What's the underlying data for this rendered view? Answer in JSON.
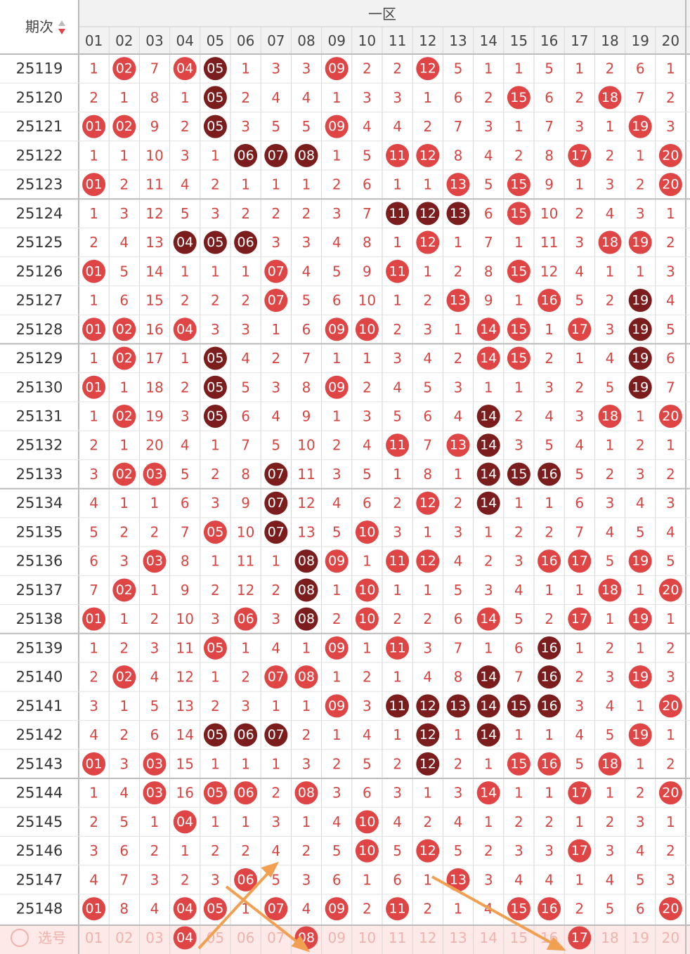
{
  "header": {
    "period": "期次",
    "zone": "一区",
    "columns": [
      "01",
      "02",
      "03",
      "04",
      "05",
      "06",
      "07",
      "08",
      "09",
      "10",
      "11",
      "12",
      "13",
      "14",
      "15",
      "16",
      "17",
      "18",
      "19",
      "20"
    ]
  },
  "rows": [
    {
      "period": "25119",
      "cells": [
        "1",
        "02",
        "7",
        "04",
        "05",
        "1",
        "3",
        "3",
        "09",
        "2",
        "2",
        "12",
        "5",
        "1",
        "1",
        "5",
        "1",
        "2",
        "6",
        "1"
      ],
      "marks": "-r-rd---r--r--------"
    },
    {
      "period": "25120",
      "cells": [
        "2",
        "1",
        "8",
        "1",
        "05",
        "2",
        "4",
        "4",
        "1",
        "3",
        "3",
        "1",
        "6",
        "2",
        "15",
        "6",
        "2",
        "18",
        "7",
        "2"
      ],
      "marks": "----d---------r--r--"
    },
    {
      "period": "25121",
      "cells": [
        "01",
        "02",
        "9",
        "2",
        "05",
        "3",
        "5",
        "5",
        "09",
        "4",
        "4",
        "2",
        "7",
        "3",
        "1",
        "7",
        "3",
        "1",
        "19",
        "3"
      ],
      "marks": "rr--d---r---------r-"
    },
    {
      "period": "25122",
      "cells": [
        "1",
        "1",
        "10",
        "3",
        "1",
        "06",
        "07",
        "08",
        "1",
        "5",
        "11",
        "12",
        "8",
        "4",
        "2",
        "8",
        "17",
        "2",
        "1",
        "20"
      ],
      "marks": "-----ddd--rr----r--r"
    },
    {
      "period": "25123",
      "cells": [
        "01",
        "2",
        "11",
        "4",
        "2",
        "1",
        "1",
        "1",
        "2",
        "6",
        "1",
        "1",
        "13",
        "5",
        "15",
        "9",
        "1",
        "3",
        "2",
        "20"
      ],
      "marks": "r-----------r-r----r"
    },
    {
      "period": "25124",
      "cells": [
        "1",
        "3",
        "12",
        "5",
        "3",
        "2",
        "2",
        "2",
        "3",
        "7",
        "11",
        "12",
        "13",
        "6",
        "15",
        "10",
        "2",
        "4",
        "3",
        "1"
      ],
      "marks": "----------ddd-r-----"
    },
    {
      "period": "25125",
      "cells": [
        "2",
        "4",
        "13",
        "04",
        "05",
        "06",
        "3",
        "3",
        "4",
        "8",
        "1",
        "12",
        "1",
        "7",
        "1",
        "11",
        "3",
        "18",
        "19",
        "2"
      ],
      "marks": "---ddd-----r-----rr-"
    },
    {
      "period": "25126",
      "cells": [
        "01",
        "5",
        "14",
        "1",
        "1",
        "1",
        "07",
        "4",
        "5",
        "9",
        "11",
        "1",
        "2",
        "8",
        "15",
        "12",
        "4",
        "1",
        "1",
        "3"
      ],
      "marks": "r-----r---r---r-----"
    },
    {
      "period": "25127",
      "cells": [
        "1",
        "6",
        "15",
        "2",
        "2",
        "2",
        "07",
        "5",
        "6",
        "10",
        "1",
        "2",
        "13",
        "9",
        "1",
        "16",
        "5",
        "2",
        "19",
        "4"
      ],
      "marks": "------r-----r--r--d-"
    },
    {
      "period": "25128",
      "cells": [
        "01",
        "02",
        "16",
        "04",
        "3",
        "3",
        "1",
        "6",
        "09",
        "10",
        "2",
        "3",
        "1",
        "14",
        "15",
        "1",
        "17",
        "3",
        "19",
        "5"
      ],
      "marks": "rr-r----rr---rr-r-d-"
    },
    {
      "period": "25129",
      "cells": [
        "1",
        "02",
        "17",
        "1",
        "05",
        "4",
        "2",
        "7",
        "1",
        "1",
        "3",
        "4",
        "2",
        "14",
        "15",
        "2",
        "1",
        "4",
        "19",
        "6"
      ],
      "marks": "-r--d--------rr---d-"
    },
    {
      "period": "25130",
      "cells": [
        "01",
        "1",
        "18",
        "2",
        "05",
        "5",
        "3",
        "8",
        "09",
        "2",
        "4",
        "5",
        "3",
        "1",
        "1",
        "3",
        "2",
        "5",
        "19",
        "7"
      ],
      "marks": "r---d---r---------d-"
    },
    {
      "period": "25131",
      "cells": [
        "1",
        "02",
        "19",
        "3",
        "05",
        "6",
        "4",
        "9",
        "1",
        "3",
        "5",
        "6",
        "4",
        "14",
        "2",
        "4",
        "3",
        "18",
        "1",
        "20"
      ],
      "marks": "-r--d--------d---r-r"
    },
    {
      "period": "25132",
      "cells": [
        "2",
        "1",
        "20",
        "4",
        "1",
        "7",
        "5",
        "10",
        "2",
        "4",
        "11",
        "7",
        "13",
        "14",
        "3",
        "5",
        "4",
        "1",
        "2",
        "1"
      ],
      "marks": "----------r-rd------"
    },
    {
      "period": "25133",
      "cells": [
        "3",
        "02",
        "03",
        "5",
        "2",
        "8",
        "07",
        "11",
        "3",
        "5",
        "1",
        "8",
        "1",
        "14",
        "15",
        "16",
        "5",
        "2",
        "3",
        "2"
      ],
      "marks": "-rr---d------ddd----"
    },
    {
      "period": "25134",
      "cells": [
        "4",
        "1",
        "1",
        "6",
        "3",
        "9",
        "07",
        "12",
        "4",
        "6",
        "2",
        "12",
        "2",
        "14",
        "1",
        "1",
        "6",
        "3",
        "4",
        "3"
      ],
      "marks": "------d----r-d------"
    },
    {
      "period": "25135",
      "cells": [
        "5",
        "2",
        "2",
        "7",
        "05",
        "10",
        "07",
        "13",
        "5",
        "10",
        "3",
        "1",
        "3",
        "1",
        "2",
        "2",
        "7",
        "4",
        "5",
        "4"
      ],
      "marks": "----r-d--r----------"
    },
    {
      "period": "25136",
      "cells": [
        "6",
        "3",
        "03",
        "8",
        "1",
        "11",
        "1",
        "08",
        "09",
        "1",
        "11",
        "12",
        "4",
        "2",
        "3",
        "16",
        "17",
        "5",
        "19",
        "5"
      ],
      "marks": "--r----dr-rr---rr-r-"
    },
    {
      "period": "25137",
      "cells": [
        "7",
        "02",
        "1",
        "9",
        "2",
        "12",
        "2",
        "08",
        "1",
        "10",
        "1",
        "1",
        "5",
        "3",
        "4",
        "1",
        "1",
        "18",
        "1",
        "20"
      ],
      "marks": "-r-----d-r-------r-r"
    },
    {
      "period": "25138",
      "cells": [
        "01",
        "1",
        "2",
        "10",
        "3",
        "06",
        "3",
        "08",
        "2",
        "10",
        "2",
        "2",
        "6",
        "14",
        "5",
        "2",
        "17",
        "1",
        "19",
        "1"
      ],
      "marks": "r----r-d-r---r--r-r-"
    },
    {
      "period": "25139",
      "cells": [
        "1",
        "2",
        "3",
        "11",
        "05",
        "1",
        "4",
        "1",
        "09",
        "1",
        "11",
        "3",
        "7",
        "1",
        "6",
        "16",
        "1",
        "2",
        "1",
        "2"
      ],
      "marks": "----r---r-r----d----"
    },
    {
      "period": "25140",
      "cells": [
        "2",
        "02",
        "4",
        "12",
        "1",
        "2",
        "07",
        "08",
        "1",
        "2",
        "1",
        "4",
        "8",
        "14",
        "7",
        "16",
        "2",
        "3",
        "19",
        "3"
      ],
      "marks": "-r----rr-----d-d--r-"
    },
    {
      "period": "25141",
      "cells": [
        "3",
        "1",
        "5",
        "13",
        "2",
        "3",
        "1",
        "1",
        "09",
        "3",
        "11",
        "12",
        "13",
        "14",
        "15",
        "16",
        "3",
        "4",
        "1",
        "20"
      ],
      "marks": "--------r-dddddd---r"
    },
    {
      "period": "25142",
      "cells": [
        "4",
        "2",
        "6",
        "14",
        "05",
        "06",
        "07",
        "2",
        "1",
        "4",
        "1",
        "12",
        "1",
        "14",
        "1",
        "1",
        "4",
        "5",
        "19",
        "1"
      ],
      "marks": "----ddd----d-d----r-"
    },
    {
      "period": "25143",
      "cells": [
        "01",
        "3",
        "03",
        "15",
        "1",
        "1",
        "1",
        "3",
        "2",
        "5",
        "2",
        "12",
        "2",
        "1",
        "15",
        "16",
        "5",
        "18",
        "1",
        "2"
      ],
      "marks": "r-r--------d--rr-r--"
    },
    {
      "period": "25144",
      "cells": [
        "1",
        "4",
        "03",
        "16",
        "05",
        "06",
        "2",
        "08",
        "3",
        "6",
        "3",
        "1",
        "3",
        "14",
        "1",
        "1",
        "17",
        "1",
        "2",
        "20"
      ],
      "marks": "--r-rr-r-----r--r--r"
    },
    {
      "period": "25145",
      "cells": [
        "2",
        "5",
        "1",
        "04",
        "1",
        "1",
        "3",
        "1",
        "4",
        "10",
        "4",
        "2",
        "4",
        "1",
        "2",
        "2",
        "1",
        "2",
        "3",
        "1"
      ],
      "marks": "---r-----r----------"
    },
    {
      "period": "25146",
      "cells": [
        "3",
        "6",
        "2",
        "1",
        "2",
        "2",
        "4",
        "2",
        "5",
        "10",
        "5",
        "12",
        "5",
        "2",
        "3",
        "3",
        "17",
        "3",
        "4",
        "2"
      ],
      "marks": "---------r-r----r---"
    },
    {
      "period": "25147",
      "cells": [
        "4",
        "7",
        "3",
        "2",
        "3",
        "06",
        "5",
        "3",
        "6",
        "1",
        "6",
        "1",
        "13",
        "3",
        "4",
        "4",
        "1",
        "4",
        "5",
        "3"
      ],
      "marks": "-----r------r-------"
    },
    {
      "period": "25148",
      "cells": [
        "01",
        "8",
        "4",
        "04",
        "05",
        "1",
        "07",
        "4",
        "09",
        "2",
        "11",
        "2",
        "1",
        "4",
        "15",
        "16",
        "2",
        "5",
        "6",
        "20"
      ],
      "marks": "r--rr-r-r-r---rr---r"
    }
  ],
  "select": {
    "label": "选号",
    "marks": "---r---r--------r---"
  }
}
